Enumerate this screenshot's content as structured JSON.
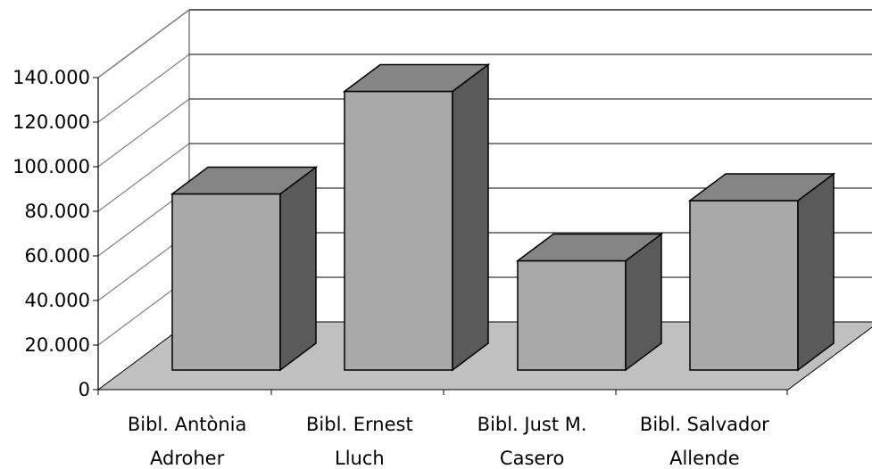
{
  "chart_data": {
    "type": "bar",
    "style": "3d-column",
    "categories": [
      [
        "Bibl. Antònia",
        "Adroher"
      ],
      [
        "Bibl. Ernest",
        "Lluch"
      ],
      [
        "Bibl. Just M.",
        "Casero"
      ],
      [
        "Bibl. Salvador",
        "Allende"
      ]
    ],
    "values": [
      79000,
      125000,
      49000,
      76000
    ],
    "ylim": [
      0,
      140000
    ],
    "yticks": [
      0,
      20000,
      40000,
      60000,
      80000,
      100000,
      120000,
      140000
    ],
    "ytick_labels": [
      "0",
      "20.000",
      "40.000",
      "60.000",
      "80.000",
      "100.000",
      "120.000",
      "140.000"
    ],
    "title": "",
    "xlabel": "",
    "ylabel": "",
    "grid": true,
    "legend": "none",
    "colors": {
      "bar_front": "#a9a9a9",
      "bar_top": "#858585",
      "bar_side": "#5a5a5a",
      "floor": "#c0c0c0",
      "gridline": "#000000",
      "wall_edge": "#808080"
    }
  }
}
